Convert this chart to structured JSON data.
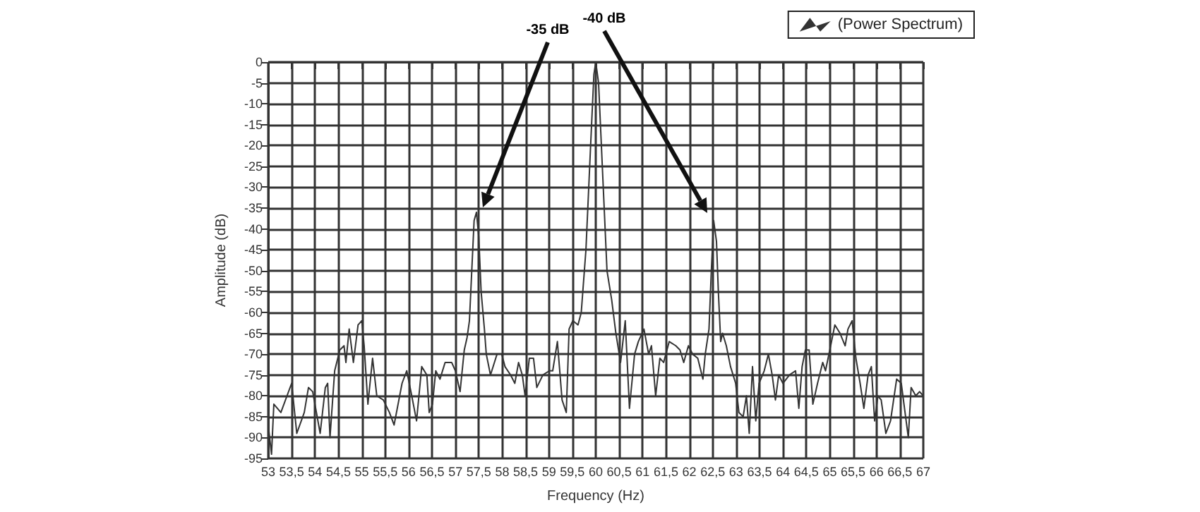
{
  "chart_data": {
    "type": "line",
    "xlabel": "Frequency (Hz)",
    "ylabel": "Amplitude (dB)",
    "annotations": [
      "-35 dB",
      "-40 dB"
    ],
    "series": [
      {
        "name": "(Power Spectrum)",
        "color": "#333333",
        "x": [
          53.0,
          53.07,
          53.12,
          53.27,
          53.5,
          53.61,
          53.77,
          53.86,
          53.95,
          54.11,
          54.22,
          54.27,
          54.32,
          54.42,
          54.53,
          54.62,
          54.66,
          54.73,
          54.82,
          54.92,
          55.0,
          55.05,
          55.13,
          55.23,
          55.32,
          55.46,
          55.59,
          55.69,
          55.86,
          55.96,
          56.05,
          56.17,
          56.28,
          56.39,
          56.44,
          56.51,
          56.58,
          56.67,
          56.78,
          56.92,
          57.0,
          57.1,
          57.19,
          57.25,
          57.3,
          57.35,
          57.4,
          57.45,
          57.5,
          57.55,
          57.62,
          57.66,
          57.75,
          57.89,
          57.99,
          58.06,
          58.18,
          58.27,
          58.35,
          58.43,
          58.49,
          58.58,
          58.67,
          58.74,
          58.87,
          59.01,
          59.08,
          59.18,
          59.28,
          59.37,
          59.43,
          59.51,
          59.62,
          59.69,
          59.79,
          59.89,
          59.96,
          60.0,
          60.06,
          60.14,
          60.24,
          60.34,
          60.43,
          60.53,
          60.63,
          60.72,
          60.83,
          60.91,
          61.03,
          61.13,
          61.19,
          61.28,
          61.37,
          61.45,
          61.57,
          61.71,
          61.8,
          61.88,
          61.98,
          62.07,
          62.18,
          62.29,
          62.34,
          62.42,
          62.47,
          62.52,
          62.58,
          62.62,
          62.67,
          62.71,
          62.79,
          62.88,
          62.99,
          63.06,
          63.15,
          63.22,
          63.28,
          63.35,
          63.42,
          63.49,
          63.6,
          63.69,
          63.77,
          63.84,
          63.91,
          64.0,
          64.14,
          64.27,
          64.34,
          64.41,
          64.48,
          64.56,
          64.64,
          64.74,
          64.85,
          64.91,
          65.02,
          65.11,
          65.22,
          65.33,
          65.39,
          65.48,
          65.56,
          65.65,
          65.73,
          65.82,
          65.89,
          65.96,
          66.03,
          66.1,
          66.2,
          66.3,
          66.43,
          66.53,
          66.61,
          66.68,
          66.74,
          66.84,
          66.92,
          67.0
        ],
        "values": [
          -87,
          -94,
          -82,
          -84,
          -77,
          -89,
          -84,
          -78,
          -79,
          -89,
          -78,
          -77,
          -90,
          -74,
          -69,
          -68,
          -72,
          -64,
          -72,
          -63,
          -62,
          -68,
          -82,
          -71,
          -80,
          -81,
          -84,
          -87,
          -77,
          -74,
          -79,
          -86,
          -73,
          -75,
          -84,
          -82,
          -74,
          -76,
          -72,
          -72,
          -74,
          -79,
          -69,
          -66,
          -62,
          -50,
          -38,
          -36,
          -42,
          -55,
          -64,
          -70,
          -75,
          -70,
          -70,
          -73,
          -75,
          -77,
          -72,
          -75,
          -80,
          -71,
          -71,
          -78,
          -75,
          -74,
          -74,
          -67,
          -81,
          -84,
          -64,
          -62,
          -63,
          -60,
          -45,
          -20,
          -3,
          0,
          -5,
          -25,
          -50,
          -57,
          -65,
          -72,
          -62,
          -83,
          -70,
          -67,
          -64,
          -70,
          -68,
          -80,
          -71,
          -72,
          -67,
          -68,
          -69,
          -72,
          -68,
          -70,
          -71,
          -76,
          -70,
          -64,
          -50,
          -38,
          -43,
          -55,
          -67,
          -65,
          -68,
          -73,
          -77,
          -84,
          -85,
          -80,
          -89,
          -73,
          -86,
          -77,
          -74,
          -70,
          -75,
          -81,
          -75,
          -77,
          -75,
          -74,
          -83,
          -73,
          -69,
          -69,
          -82,
          -77,
          -72,
          -74,
          -68,
          -63,
          -65,
          -68,
          -64,
          -62,
          -71,
          -77,
          -83,
          -75,
          -73,
          -86,
          -80,
          -81,
          -89,
          -86,
          -76,
          -77,
          -84,
          -90,
          -78,
          -80,
          -79,
          -80
        ]
      }
    ],
    "xlim": [
      53,
      67
    ],
    "xticks": [
      53,
      {
        "value": 53.5,
        "label": "53,5"
      },
      54,
      {
        "value": 54.5,
        "label": "54,5"
      },
      55,
      {
        "value": 55.5,
        "label": "55,5"
      },
      56,
      {
        "value": 56.5,
        "label": "56,5"
      },
      57,
      {
        "value": 57.5,
        "label": "57,5"
      },
      58,
      {
        "value": 58.5,
        "label": "58,5"
      },
      59,
      {
        "value": 59.5,
        "label": "59,5"
      },
      60,
      {
        "value": 60.5,
        "label": "60,5"
      },
      61,
      {
        "value": 61.5,
        "label": "61,5"
      },
      62,
      {
        "value": 62.5,
        "label": "62,5"
      },
      63,
      {
        "value": 63.5,
        "label": "63,5"
      },
      64,
      {
        "value": 64.5,
        "label": "64,5"
      },
      65,
      {
        "value": 65.5,
        "label": "65,5"
      },
      66,
      {
        "value": 66.5,
        "label": "66,5"
      },
      67
    ],
    "ylim": [
      -95,
      0
    ],
    "yticks": [
      0,
      -5,
      -10,
      -15,
      -20,
      -25,
      -30,
      -35,
      -40,
      -45,
      -50,
      -55,
      -60,
      -65,
      -70,
      -75,
      -80,
      -85,
      -90,
      -95
    ],
    "grid": true,
    "legend": "top right",
    "marker": "none",
    "line_style": "solid"
  }
}
